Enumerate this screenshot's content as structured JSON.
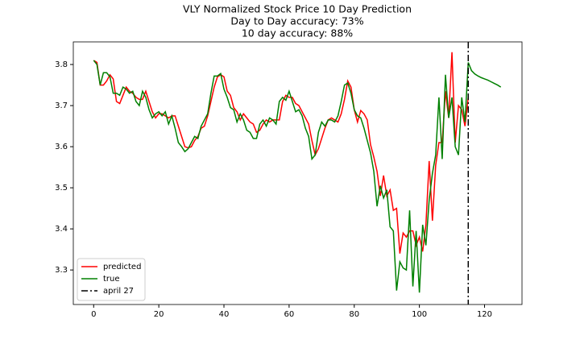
{
  "chart_data": {
    "type": "line",
    "title": "VLY Normalized Stock Price 10 Day Prediction",
    "subtitle": [
      "Day to Day accuracy: 73%",
      "10 day accuracy: 88%"
    ],
    "x": [
      0,
      1,
      2,
      3,
      4,
      5,
      6,
      7,
      8,
      9,
      10,
      11,
      12,
      13,
      14,
      15,
      16,
      17,
      18,
      19,
      20,
      21,
      22,
      23,
      24,
      25,
      26,
      27,
      28,
      29,
      30,
      31,
      32,
      33,
      34,
      35,
      36,
      37,
      38,
      39,
      40,
      41,
      42,
      43,
      44,
      45,
      46,
      47,
      48,
      49,
      50,
      51,
      52,
      53,
      54,
      55,
      56,
      57,
      58,
      59,
      60,
      61,
      62,
      63,
      64,
      65,
      66,
      67,
      68,
      69,
      70,
      71,
      72,
      73,
      74,
      75,
      76,
      77,
      78,
      79,
      80,
      81,
      82,
      83,
      84,
      85,
      86,
      87,
      88,
      89,
      90,
      91,
      92,
      93,
      94,
      95,
      96,
      97,
      98,
      99,
      100,
      101,
      102,
      103,
      104,
      105,
      106,
      107,
      108,
      109,
      110,
      111,
      112,
      113,
      114,
      115,
      116,
      117,
      118,
      119,
      120,
      121,
      122,
      123,
      124,
      125
    ],
    "series": [
      {
        "name": "predicted",
        "color": "#ff0000",
        "values": [
          3.81,
          3.805,
          3.75,
          3.75,
          3.76,
          3.775,
          3.765,
          3.71,
          3.705,
          3.725,
          3.745,
          3.735,
          3.73,
          3.72,
          3.715,
          3.715,
          3.735,
          3.71,
          3.685,
          3.67,
          3.68,
          3.68,
          3.675,
          3.67,
          3.675,
          3.675,
          3.65,
          3.625,
          3.6,
          3.597,
          3.6,
          3.615,
          3.625,
          3.645,
          3.65,
          3.675,
          3.71,
          3.745,
          3.77,
          3.775,
          3.77,
          3.735,
          3.725,
          3.695,
          3.685,
          3.665,
          3.68,
          3.67,
          3.66,
          3.655,
          3.635,
          3.64,
          3.655,
          3.665,
          3.66,
          3.665,
          3.665,
          3.665,
          3.71,
          3.725,
          3.72,
          3.72,
          3.705,
          3.7,
          3.685,
          3.67,
          3.655,
          3.615,
          3.58,
          3.595,
          3.62,
          3.645,
          3.665,
          3.67,
          3.665,
          3.66,
          3.68,
          3.715,
          3.76,
          3.745,
          3.69,
          3.66,
          3.688,
          3.68,
          3.665,
          3.605,
          3.575,
          3.54,
          3.48,
          3.53,
          3.48,
          3.495,
          3.445,
          3.45,
          3.34,
          3.39,
          3.38,
          3.395,
          3.395,
          3.36,
          3.38,
          3.345,
          3.41,
          3.565,
          3.42,
          3.555,
          3.61,
          3.61,
          3.735,
          3.67,
          3.83,
          3.61,
          3.7,
          3.69,
          3.65,
          3.72,
          null,
          null,
          null,
          null,
          null,
          null,
          null,
          null,
          null,
          null
        ]
      },
      {
        "name": "true",
        "color": "#008000",
        "values": [
          3.81,
          3.8,
          3.75,
          3.78,
          3.78,
          3.77,
          3.73,
          3.73,
          3.725,
          3.745,
          3.74,
          3.73,
          3.735,
          3.71,
          3.7,
          3.735,
          3.72,
          3.69,
          3.67,
          3.68,
          3.685,
          3.675,
          3.685,
          3.655,
          3.675,
          3.645,
          3.61,
          3.6,
          3.588,
          3.595,
          3.61,
          3.625,
          3.62,
          3.65,
          3.665,
          3.68,
          3.73,
          3.772,
          3.772,
          3.778,
          3.74,
          3.72,
          3.695,
          3.69,
          3.66,
          3.68,
          3.665,
          3.64,
          3.635,
          3.62,
          3.62,
          3.655,
          3.665,
          3.65,
          3.67,
          3.665,
          3.655,
          3.71,
          3.72,
          3.713,
          3.735,
          3.71,
          3.685,
          3.69,
          3.675,
          3.645,
          3.625,
          3.57,
          3.58,
          3.635,
          3.66,
          3.65,
          3.665,
          3.665,
          3.66,
          3.675,
          3.71,
          3.75,
          3.755,
          3.73,
          3.69,
          3.675,
          3.67,
          3.645,
          3.615,
          3.585,
          3.54,
          3.455,
          3.505,
          3.475,
          3.495,
          3.405,
          3.395,
          3.25,
          3.32,
          3.305,
          3.3,
          3.445,
          3.26,
          3.395,
          3.245,
          3.41,
          3.36,
          3.47,
          3.535,
          3.58,
          3.72,
          3.57,
          3.775,
          3.67,
          3.72,
          3.6,
          3.58,
          3.72,
          3.66,
          3.805,
          3.785,
          3.777,
          3.772,
          3.768,
          3.765,
          3.762,
          3.758,
          3.754,
          3.75,
          3.745
        ]
      }
    ],
    "vline": {
      "x": 115,
      "label": "april 27",
      "color": "#000000"
    },
    "xlim": [
      -6.25,
      131.5
    ],
    "xticks": [
      0,
      20,
      40,
      60,
      80,
      100,
      120
    ],
    "ylim": [
      3.216,
      3.855
    ],
    "yticks": [
      3.3,
      3.4,
      3.5,
      3.6,
      3.7,
      3.8
    ],
    "legend": "lower left"
  }
}
